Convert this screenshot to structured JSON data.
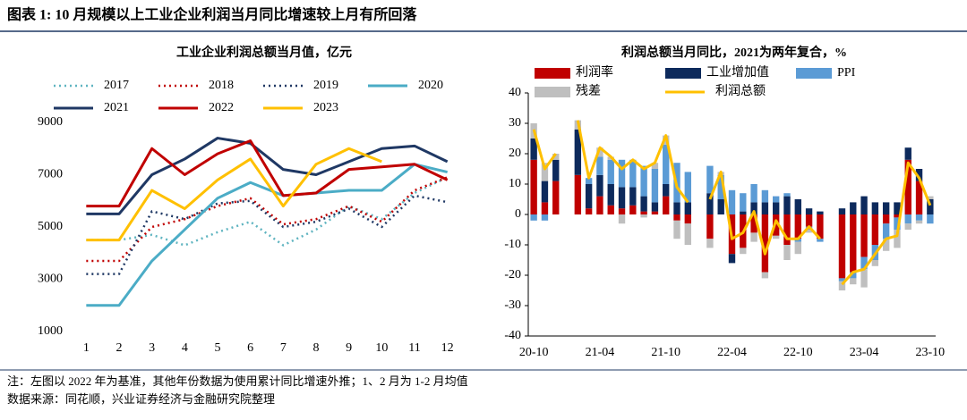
{
  "header": {
    "title": "图表 1: 10 月规模以上工业企业利润当月同比增速较上月有所回落"
  },
  "notes": [
    "注：左图以 2022 年为基准，其他年份数据为使用累计同比增速外推；1、2 月为 1-2 月均值",
    "数据来源：同花顺，兴业证券经济与金融研究院整理"
  ],
  "chart_data": [
    {
      "type": "line",
      "title": "工业企业利润总额当月值，亿元",
      "categories": [
        "1",
        "2",
        "3",
        "4",
        "5",
        "6",
        "7",
        "8",
        "9",
        "10",
        "11",
        "12"
      ],
      "ylim": [
        1000,
        9000
      ],
      "yticks": [
        1000,
        3000,
        5000,
        7000,
        9000
      ],
      "series": [
        {
          "name": "2017",
          "color": "#5fb4c0",
          "style": "dotted",
          "values": [
            4500,
            4500,
            4700,
            4300,
            4800,
            5200,
            4300,
            4900,
            5800,
            5300,
            6300,
            6900
          ]
        },
        {
          "name": "2018",
          "color": "#c00000",
          "style": "dotted",
          "values": [
            3700,
            3700,
            5000,
            5300,
            5800,
            6100,
            5100,
            5300,
            5800,
            5200,
            6400,
            6900
          ]
        },
        {
          "name": "2019",
          "color": "#1f3864",
          "style": "dotted",
          "values": [
            3200,
            3200,
            5600,
            5300,
            5900,
            6000,
            5000,
            5200,
            5700,
            5000,
            6200,
            5950
          ]
        },
        {
          "name": "2020",
          "color": "#4bacc6",
          "style": "solid",
          "values": [
            2000,
            2000,
            3700,
            4900,
            6100,
            6700,
            6200,
            6300,
            6400,
            6400,
            7400,
            7100
          ]
        },
        {
          "name": "2021",
          "color": "#1f3864",
          "style": "solid",
          "values": [
            5500,
            5500,
            7000,
            7600,
            8400,
            8200,
            7200,
            7000,
            7500,
            8000,
            8100,
            7500
          ]
        },
        {
          "name": "2022",
          "color": "#c00000",
          "style": "solid",
          "values": [
            5800,
            5800,
            8000,
            7000,
            7800,
            8300,
            6200,
            6300,
            7200,
            7300,
            7400,
            6800
          ]
        },
        {
          "name": "2023",
          "color": "#ffc000",
          "style": "solid",
          "values": [
            4500,
            4500,
            6400,
            5700,
            6800,
            7600,
            5800,
            7400,
            8000,
            7500,
            null,
            null
          ]
        }
      ]
    },
    {
      "type": "bar",
      "stacked": true,
      "title": "利润总额当月同比，2021为两年复合，%",
      "categories": [
        "20-10",
        null,
        null,
        null,
        null,
        null,
        "21-04",
        null,
        null,
        null,
        null,
        null,
        "21-10",
        null,
        null,
        null,
        null,
        null,
        "22-04",
        null,
        null,
        null,
        null,
        null,
        "22-10",
        null,
        null,
        null,
        null,
        null,
        "23-04",
        null,
        null,
        null,
        null,
        null,
        "23-10"
      ],
      "ylim": [
        -40,
        40
      ],
      "yticks": [
        -40,
        -30,
        -20,
        -10,
        0,
        10,
        20,
        30,
        40
      ],
      "series": [
        {
          "name": "利润率",
          "color": "#c00000",
          "type": "bar",
          "values": [
            18,
            4,
            11,
            null,
            13,
            2,
            6,
            3,
            2,
            3,
            1,
            1,
            6,
            -2,
            -3,
            null,
            -8,
            0,
            -13,
            -11,
            -6,
            -19,
            -7,
            -10,
            -8,
            -4,
            -8,
            null,
            -21,
            -19,
            -14,
            -10,
            -3,
            -1,
            18,
            11,
            0
          ]
        },
        {
          "name": "工业增加值",
          "color": "#0d2a5c",
          "type": "bar",
          "values": [
            7,
            7,
            7,
            null,
            15,
            8,
            7,
            7,
            7,
            6,
            5,
            3,
            4,
            4,
            4,
            null,
            7,
            5,
            -3,
            1,
            4,
            4,
            4,
            6,
            5,
            2,
            1,
            null,
            2,
            4,
            6,
            4,
            4,
            4,
            4,
            4,
            5
          ]
        },
        {
          "name": "PPI",
          "color": "#5b9bd5",
          "type": "bar",
          "values": [
            -2,
            -2,
            0,
            null,
            0,
            2,
            6,
            8,
            9,
            9,
            10,
            11,
            13,
            13,
            10,
            null,
            9,
            8,
            8,
            6,
            6,
            4,
            2,
            1,
            -1,
            -1,
            -1,
            null,
            -1,
            -2,
            -4,
            -5,
            -5,
            -4,
            -3,
            -2,
            -3
          ]
        },
        {
          "name": "残差",
          "color": "#bfbfbf",
          "type": "bar",
          "values": [
            5,
            6,
            2,
            null,
            3,
            0,
            3,
            1,
            -3,
            0,
            -1,
            2,
            3,
            -6,
            -7,
            null,
            -3,
            1,
            0,
            -2,
            -3,
            -2,
            -1,
            -5,
            -4,
            -1,
            0,
            null,
            -3,
            -2,
            -6,
            -2,
            -4,
            -6,
            -2,
            -1,
            1
          ]
        },
        {
          "name": "利润总额",
          "color": "#ffc000",
          "type": "line",
          "values": [
            28,
            15,
            20,
            null,
            31,
            12,
            22,
            19,
            15,
            18,
            15,
            17,
            26,
            9,
            4,
            null,
            5,
            14,
            -8,
            -6,
            1,
            -13,
            -2,
            -8,
            -8,
            -4,
            -8,
            null,
            -23,
            -19,
            -18,
            -13,
            -8,
            -7,
            17,
            12,
            3
          ]
        }
      ]
    }
  ]
}
